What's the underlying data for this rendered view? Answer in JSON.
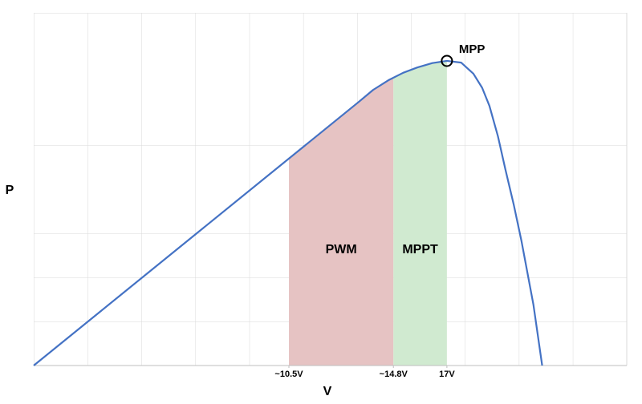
{
  "chart_data": {
    "type": "line",
    "x_label": "V",
    "y_label": "P",
    "xlim": [
      0,
      24.4
    ],
    "ylim": [
      0,
      8
    ],
    "xticks": [
      {
        "value": 10.5,
        "label": "~10.5V"
      },
      {
        "value": 14.8,
        "label": "~14.8V"
      },
      {
        "value": 17,
        "label": "17V"
      }
    ],
    "grid": true,
    "series": [
      {
        "color": "#4472c4",
        "x": [
          0,
          13.33,
          13.96,
          14.59,
          15.2,
          15.78,
          16.4,
          17.0,
          17.59,
          18.09,
          18.45,
          18.75,
          19.1,
          19.41,
          19.75,
          20.07,
          20.56,
          20.92
        ],
        "values": [
          0,
          5.96,
          6.25,
          6.47,
          6.64,
          6.76,
          6.86,
          6.91,
          6.87,
          6.62,
          6.3,
          5.89,
          5.2,
          4.44,
          3.65,
          2.82,
          1.38,
          0
        ]
      }
    ],
    "regions": [
      {
        "label": "PWM",
        "color": "#e6c3c3"
      },
      {
        "label": "MPPT",
        "color": "#d0ead0"
      }
    ],
    "mpp": {
      "label": "MPP",
      "x": 17,
      "y": 6.91
    }
  }
}
